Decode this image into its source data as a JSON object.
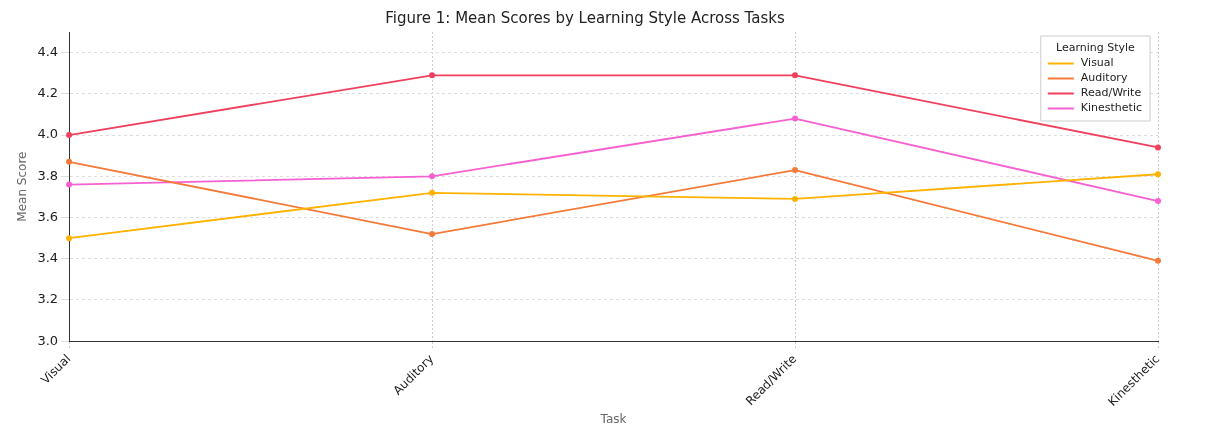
{
  "chart_data": {
    "type": "line",
    "title": "Figure 1: Mean Scores by Learning Style Across Tasks",
    "xlabel": "Task",
    "ylabel": "Mean Score",
    "legend_title": "Learning Style",
    "categories": [
      "Visual",
      "Auditory",
      "Read/Write",
      "Kinesthetic"
    ],
    "series": [
      {
        "name": "Visual",
        "color": "#ffb300",
        "values": [
          3.5,
          3.72,
          3.69,
          3.81
        ]
      },
      {
        "name": "Auditory",
        "color": "#f47a3a",
        "values": [
          3.87,
          3.52,
          3.83,
          3.39
        ]
      },
      {
        "name": "Read/Write",
        "color": "#f0405e",
        "values": [
          4.0,
          4.29,
          4.29,
          3.94
        ]
      },
      {
        "name": "Kinesthetic",
        "color": "#f760d0",
        "values": [
          3.76,
          3.8,
          4.08,
          3.68
        ]
      }
    ],
    "ylim": [
      3.0,
      4.5
    ],
    "yticks": [
      {
        "value": 3,
        "label": "3.0"
      },
      3.2,
      3.4,
      3.6,
      3.8,
      {
        "value": 4,
        "label": "4.0"
      },
      4.2,
      4.4
    ],
    "grid": true,
    "legend": "top right",
    "marker": "circle",
    "line_style": "solid"
  }
}
